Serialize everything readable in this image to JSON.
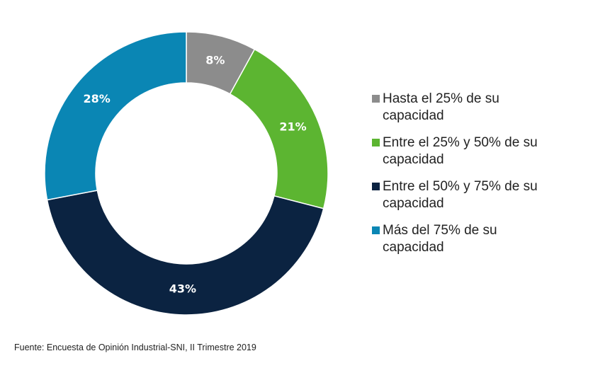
{
  "chart_data": {
    "type": "donut",
    "categories": [
      "Hasta el 25% de su capacidad",
      "Entre el 25% y 50% de su capacidad",
      "Entre el 50% y 75% de su capacidad",
      "Más del 75% de su capacidad"
    ],
    "values": [
      8,
      21,
      43,
      28
    ],
    "value_labels": [
      "8%",
      "21%",
      "43%",
      "28%"
    ],
    "colors": [
      "#8c8c8c",
      "#5cb531",
      "#0b2341",
      "#0a86b4"
    ],
    "legend": "right",
    "source": "Fuente: Encuesta de Opinión Industrial-SNI, II Trimestre 2019"
  }
}
